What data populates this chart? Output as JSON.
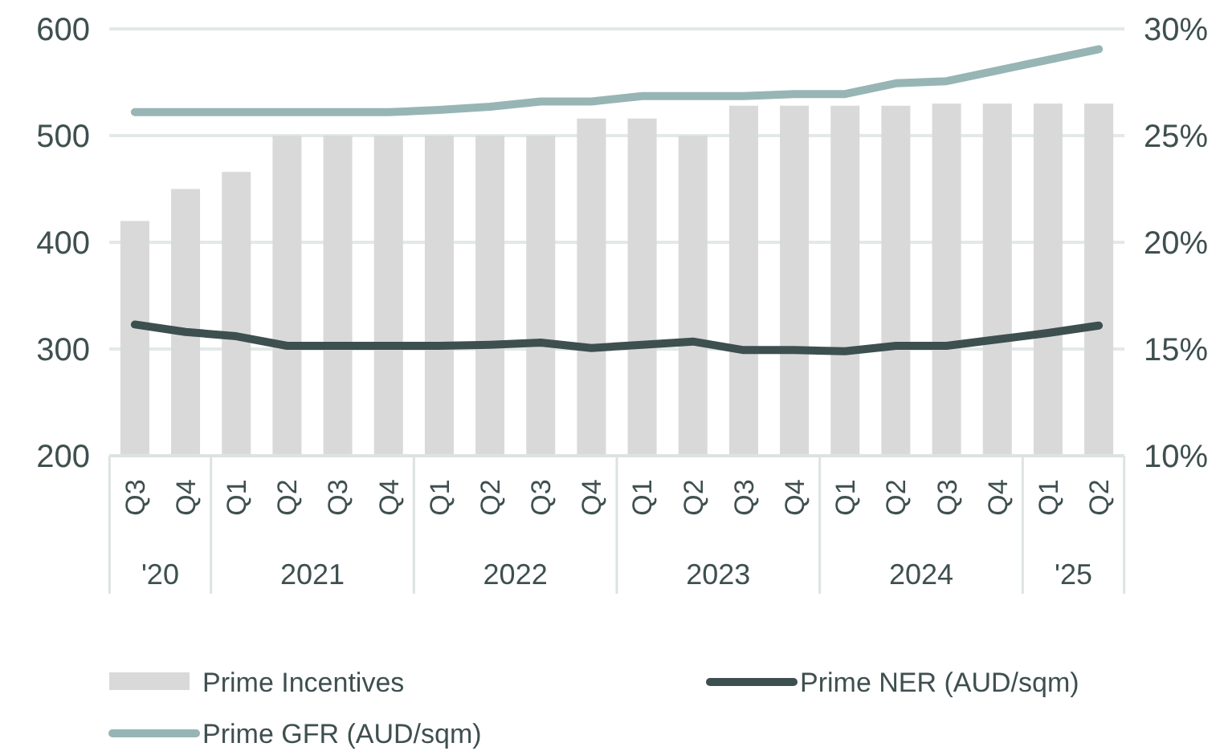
{
  "chart_data": {
    "type": "bar",
    "categories": [
      "Q3",
      "Q4",
      "Q1",
      "Q2",
      "Q3",
      "Q4",
      "Q1",
      "Q2",
      "Q3",
      "Q4",
      "Q1",
      "Q2",
      "Q3",
      "Q4",
      "Q1",
      "Q2",
      "Q3",
      "Q4",
      "Q1",
      "Q2"
    ],
    "annotations": [
      "'20",
      "2021",
      "2022",
      "2023",
      "2024",
      "'25"
    ],
    "series": [
      {
        "name": "Prime Incentives",
        "axis": "y2",
        "color": "#d9d9d9",
        "values": [
          21,
          22.5,
          23.3,
          25,
          25,
          25,
          25,
          25,
          25,
          25.8,
          25.8,
          25,
          26.4,
          26.4,
          26.4,
          26.4,
          26.5,
          26.5,
          26.5,
          26.5
        ]
      },
      {
        "name": "Prime NER (AUD/sqm)",
        "type": "line",
        "color": "#3d4f4f",
        "values": [
          323,
          316,
          312,
          303,
          303,
          303,
          303,
          304,
          306,
          301,
          304,
          307,
          299,
          299,
          298,
          303,
          303,
          309,
          315,
          322
        ]
      },
      {
        "name": "Prime GFR (AUD/sqm)",
        "type": "line",
        "color": "#97b5b5",
        "values": [
          522,
          522,
          522,
          522,
          522,
          522,
          524,
          527,
          532,
          532,
          537,
          537,
          537,
          539,
          539,
          549,
          551,
          561,
          571,
          581
        ]
      }
    ],
    "ylim": [
      200,
      600
    ],
    "yticks": [
      200,
      300,
      400,
      500,
      600
    ],
    "y2lim": [
      10,
      30
    ],
    "y2ticks": [
      {
        "value": 10,
        "label": "10%"
      },
      {
        "value": 15,
        "label": "15%"
      },
      {
        "value": 20,
        "label": "20%"
      },
      {
        "value": 25,
        "label": "25%"
      },
      {
        "value": 30,
        "label": "30%"
      }
    ],
    "grid": "y",
    "legend": "bottom"
  }
}
